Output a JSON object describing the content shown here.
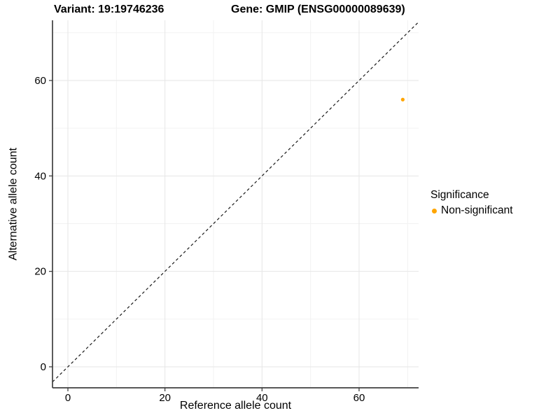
{
  "titles": {
    "variant": "Variant: 19:19746236",
    "gene": "Gene: GMIP (ENSG00000089639)"
  },
  "axes": {
    "x_label": "Reference allele count",
    "y_label": "Alternative allele count"
  },
  "legend": {
    "title": "Significance",
    "items": [
      {
        "label": "Non-significant",
        "color": "#FFA500"
      }
    ]
  },
  "chart_data": {
    "type": "scatter",
    "title": "Variant: 19:19746236 | Gene: GMIP (ENSG00000089639)",
    "xlabel": "Reference allele count",
    "ylabel": "Alternative allele count",
    "xlim": [
      -3.2,
      72.4
    ],
    "ylim": [
      -4.4,
      72.6
    ],
    "x_ticks": [
      0,
      20,
      40,
      60
    ],
    "y_ticks": [
      0,
      20,
      40,
      60
    ],
    "x_minor_ticks": [
      10,
      30,
      50,
      70
    ],
    "y_minor_ticks": [
      10,
      30,
      50,
      70
    ],
    "grid": true,
    "legend_position": "right",
    "reference_line": {
      "kind": "identity y=x",
      "style": "dashed",
      "color": "#1a1a1a"
    },
    "series": [
      {
        "name": "Non-significant",
        "color": "#FFA500",
        "points": [
          {
            "x": 69,
            "y": 56
          }
        ]
      }
    ],
    "colors": {
      "major_grid": "#e6e6e6",
      "minor_grid": "#f2f2f2",
      "axis_line": "#404040",
      "tick_mark": "#333333"
    }
  }
}
